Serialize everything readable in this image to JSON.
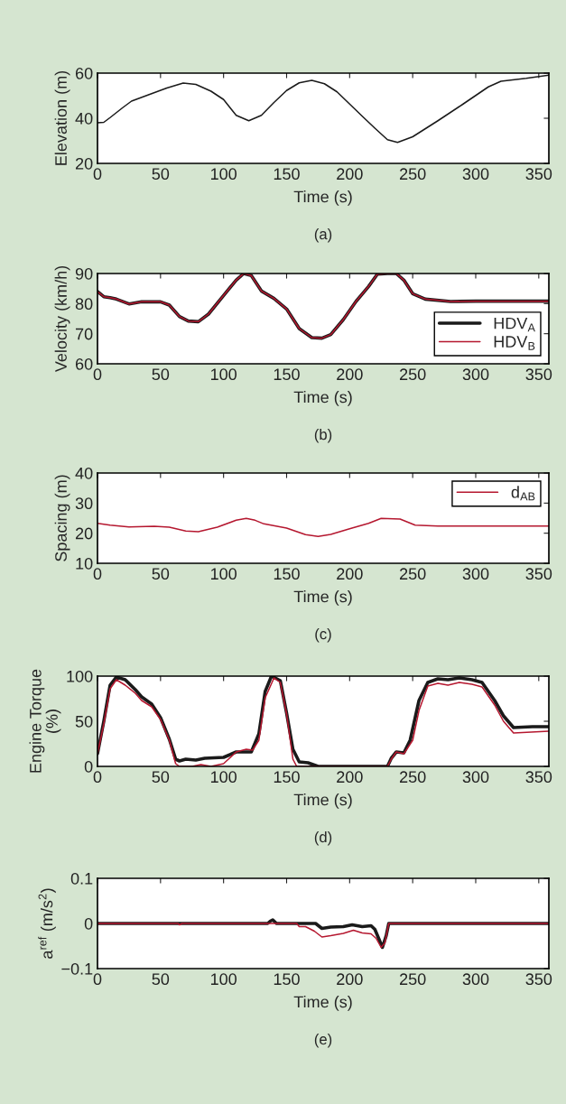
{
  "chart_data": [
    {
      "type": "line",
      "xlabel": "Time (s)",
      "ylabel": "Elevation (m)",
      "annotations": [
        "(a)"
      ],
      "xlim": [
        0,
        358
      ],
      "xticks": [
        0,
        50,
        100,
        150,
        200,
        250,
        300,
        350
      ],
      "ylim": [
        20,
        60
      ],
      "yticks": [
        20,
        40,
        60
      ],
      "legend": false,
      "grid": false,
      "series": [
        {
          "color": "#1a1a1a",
          "x": [
            0,
            5,
            10,
            20,
            27,
            40,
            55,
            68,
            78,
            90,
            100,
            110,
            120,
            130,
            140,
            150,
            160,
            170,
            180,
            190,
            200,
            210,
            220,
            230,
            238,
            250,
            270,
            290,
            310,
            320,
            340,
            358
          ],
          "values": [
            38,
            38.2,
            40.3,
            44.7,
            47.6,
            50.3,
            53.4,
            55.6,
            55,
            52,
            48.3,
            41.3,
            38.9,
            41.3,
            47,
            52.3,
            55.7,
            56.8,
            55.3,
            51.7,
            46.3,
            40.9,
            35.6,
            30.5,
            29.3,
            31.8,
            38.9,
            46.3,
            53.9,
            56.4,
            57.7,
            59.1
          ]
        }
      ]
    },
    {
      "type": "line",
      "xlabel": "Time (s)",
      "ylabel": "Velocity (km/h)",
      "annotations": [
        "(b)"
      ],
      "xlim": [
        0,
        358
      ],
      "xticks": [
        0,
        50,
        100,
        150,
        200,
        250,
        300,
        350
      ],
      "ylim": [
        60,
        90
      ],
      "yticks": [
        60,
        70,
        80,
        90
      ],
      "legend": "bottom right",
      "grid": false,
      "series": [
        {
          "name": "HDV$_{A}$",
          "color": "#1a1a1a",
          "x": [
            0,
            5,
            10,
            15,
            25,
            35,
            50,
            57,
            65,
            72,
            80,
            88,
            100,
            110,
            116,
            122,
            130,
            140,
            150,
            160,
            170,
            178,
            185,
            195,
            205,
            215,
            222,
            230,
            237,
            243,
            250,
            260,
            280,
            300,
            358
          ],
          "values": [
            84,
            82.3,
            82,
            81.5,
            79.9,
            80.6,
            80.6,
            79.5,
            75.7,
            74.2,
            74,
            76.5,
            82.7,
            87.8,
            90,
            89.3,
            84.2,
            81.7,
            78.2,
            71.7,
            68.7,
            68.5,
            69.7,
            74.7,
            80.7,
            85.7,
            89.8,
            90,
            90,
            87.8,
            83.3,
            81.5,
            80.7,
            80.8,
            80.8
          ]
        },
        {
          "name": "HDV$_{B}$",
          "color": "#b5172f",
          "x": [
            0,
            5,
            10,
            15,
            25,
            35,
            50,
            57,
            65,
            72,
            80,
            88,
            100,
            110,
            116,
            122,
            130,
            140,
            150,
            160,
            170,
            178,
            185,
            195,
            205,
            215,
            222,
            230,
            237,
            243,
            250,
            260,
            280,
            300,
            358
          ],
          "values": [
            84,
            82.3,
            82,
            81.5,
            79.9,
            80.6,
            80.6,
            79.5,
            75.7,
            74.2,
            74,
            76.5,
            82.7,
            87.8,
            90,
            89.3,
            84.2,
            81.7,
            78.2,
            71.7,
            68.7,
            68.5,
            69.7,
            74.7,
            80.7,
            85.7,
            89.8,
            90,
            90,
            87.8,
            83.3,
            81.5,
            80.7,
            80.8,
            80.8
          ]
        }
      ]
    },
    {
      "type": "line",
      "xlabel": "Time (s)",
      "ylabel": "Spacing (m)",
      "annotations": [
        "(c)"
      ],
      "xlim": [
        0,
        358
      ],
      "xticks": [
        0,
        50,
        100,
        150,
        200,
        250,
        300,
        350
      ],
      "ylim": [
        10,
        40
      ],
      "yticks": [
        10,
        20,
        30,
        40
      ],
      "legend": "top right",
      "grid": false,
      "series": [
        {
          "name": "d$_{AB}$",
          "color": "#b5172f",
          "x": [
            0,
            10,
            25,
            45,
            57,
            70,
            80,
            95,
            110,
            118,
            125,
            132,
            150,
            165,
            175,
            185,
            200,
            215,
            225,
            240,
            252,
            270,
            358
          ],
          "values": [
            23.3,
            22.7,
            22.1,
            22.3,
            22,
            20.7,
            20.5,
            22,
            24.3,
            24.9,
            24.3,
            23.1,
            21.7,
            19.5,
            18.9,
            19.6,
            21.5,
            23.3,
            24.9,
            24.7,
            22.7,
            22.4,
            22.4
          ]
        }
      ]
    },
    {
      "type": "line",
      "xlabel": "Time (s)",
      "ylabel": "Engine Torque\n(%)",
      "annotations": [
        "(d)"
      ],
      "xlim": [
        0,
        358
      ],
      "xticks": [
        0,
        50,
        100,
        150,
        200,
        250,
        300,
        350
      ],
      "ylim": [
        0,
        100
      ],
      "yticks": [
        0,
        50,
        100
      ],
      "legend": false,
      "grid": false,
      "series": [
        {
          "color": "#1a1a1a",
          "x": [
            0,
            5,
            10,
            15,
            22,
            30,
            35,
            43,
            50,
            57,
            62,
            65,
            70,
            78,
            85,
            100,
            110,
            122,
            128,
            133,
            138,
            145,
            150,
            155,
            160,
            167,
            175,
            230,
            233,
            237,
            243,
            248,
            255,
            262,
            270,
            278,
            287,
            297,
            305,
            315,
            322,
            330,
            345,
            358
          ],
          "values": [
            14,
            50,
            90,
            99,
            96,
            85,
            77,
            69,
            54,
            30,
            8,
            6,
            8,
            7,
            9,
            10,
            16,
            16,
            36,
            83,
            100,
            95,
            59,
            19,
            5,
            4,
            0,
            0,
            9,
            16,
            15,
            29,
            73,
            93,
            97,
            96,
            98,
            96,
            93,
            73,
            56,
            43,
            44,
            44
          ]
        },
        {
          "color": "#b5172f",
          "x": [
            0,
            5,
            10,
            15,
            22,
            30,
            35,
            43,
            50,
            57,
            62,
            65,
            75,
            82,
            90,
            100,
            110,
            118,
            123,
            128,
            133,
            140,
            145,
            150,
            155,
            158,
            230,
            233,
            237,
            243,
            250,
            255,
            262,
            270,
            278,
            287,
            297,
            305,
            315,
            322,
            330,
            358
          ],
          "values": [
            14,
            47,
            86,
            96,
            90,
            81,
            73,
            66,
            52,
            29,
            3,
            0,
            0,
            2,
            0,
            3,
            16,
            19,
            18,
            29,
            76,
            98,
            93,
            58,
            8,
            0,
            0,
            8,
            16,
            14,
            29,
            62,
            89,
            92,
            90,
            93,
            91,
            88,
            68,
            50,
            37,
            39
          ]
        }
      ]
    },
    {
      "type": "line",
      "xlabel": "Time (s)",
      "ylabel": "a$^{ref}$ (m/s$^{2}$)",
      "annotations": [
        "(e)"
      ],
      "xlim": [
        0,
        358
      ],
      "xticks": [
        0,
        50,
        100,
        150,
        200,
        250,
        300,
        350
      ],
      "ylim": [
        -0.1,
        0.1
      ],
      "yticks": [
        {
          "value": -0.1,
          "label": "−0.1"
        },
        0,
        0.1
      ],
      "legend": false,
      "grid": false,
      "series": [
        {
          "color": "#1a1a1a",
          "x": [
            0,
            135,
            137,
            139,
            142,
            173,
            178,
            185,
            195,
            202,
            210,
            217,
            220,
            223,
            226,
            229,
            231,
            358
          ],
          "values": [
            0,
            0,
            0.005,
            0.008,
            0,
            0,
            -0.011,
            -0.008,
            -0.007,
            -0.003,
            -0.007,
            -0.005,
            -0.013,
            -0.033,
            -0.053,
            -0.027,
            0,
            0
          ]
        },
        {
          "color": "#b5172f",
          "x": [
            0,
            64,
            65,
            67,
            158,
            160,
            165,
            172,
            178,
            185,
            195,
            203,
            210,
            217,
            221,
            225,
            228,
            231,
            358
          ],
          "values": [
            0,
            0,
            -0.003,
            0,
            0,
            -0.007,
            -0.007,
            -0.017,
            -0.03,
            -0.027,
            -0.022,
            -0.015,
            -0.021,
            -0.023,
            -0.033,
            -0.053,
            -0.043,
            0,
            0
          ]
        }
      ]
    }
  ]
}
